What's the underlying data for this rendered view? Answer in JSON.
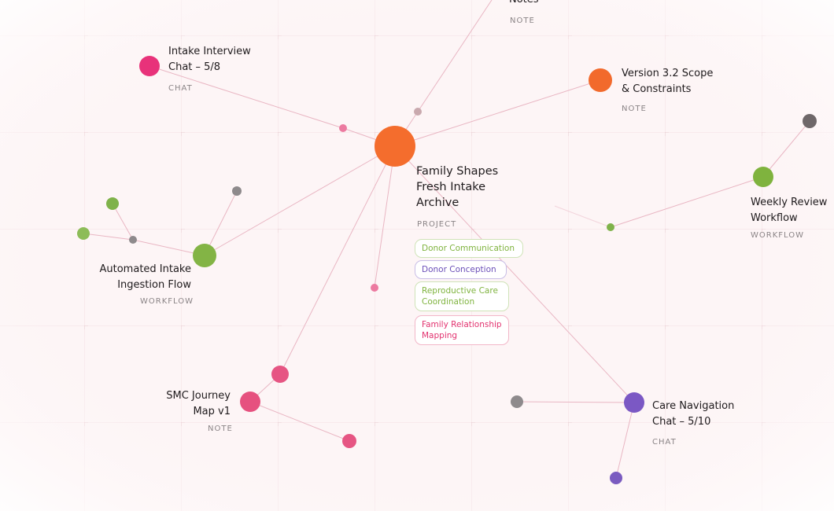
{
  "nodes": [
    {
      "label": "Notes",
      "kind": "NOTE"
    },
    {
      "label": "Intake Interview Chat – 5/8",
      "kind": "CHAT"
    },
    {
      "label": "Version 3.2 Scope & Constraints",
      "kind": "NOTE"
    },
    {
      "label": "Family Shapes Fresh Intake Archive",
      "kind": "PROJECT"
    },
    {
      "label": "Weekly Review Workflow",
      "kind": "WORKFLOW"
    },
    {
      "label": "Automated Intake Ingestion Flow",
      "kind": "WORKFLOW"
    },
    {
      "label": "SMC Journey Map v1",
      "kind": "NOTE"
    },
    {
      "label": "Care Navigation Chat – 5/10",
      "kind": "CHAT"
    }
  ],
  "tags": [
    "Donor Communication",
    "Donor Conception",
    "Reproductive Care Coordination",
    "Family Relationship Mapping"
  ]
}
